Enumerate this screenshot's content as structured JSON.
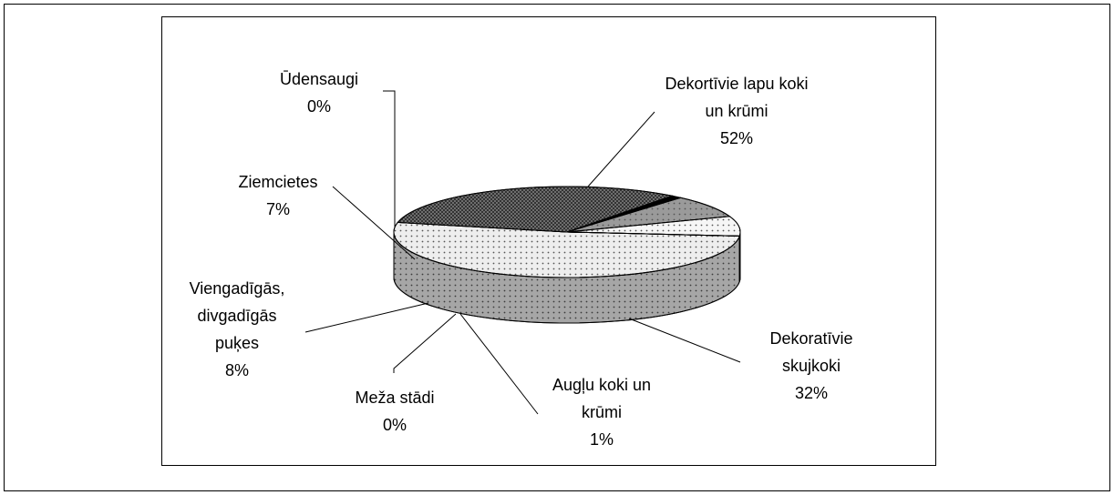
{
  "chart_data": {
    "type": "pie3d",
    "categories": [
      "Dekortīvie lapu koki un krūmi",
      "Dekoratīvie skujkoki",
      "Augļu koki un krūmi",
      "Meža stādi",
      "Viengadīgās, divgadīgās puķes",
      "Ziemcietes",
      "Ūdensaugi"
    ],
    "values": [
      52,
      32,
      1,
      0,
      8,
      7,
      0
    ],
    "value_labels": [
      "52%",
      "32%",
      "1%",
      "0%",
      "8%",
      "7%",
      "0%"
    ],
    "colors": [
      "#eeeeee",
      "#6e6e6e",
      "#000000",
      "#ffffff",
      "#9a9a9a",
      "#f6f6f6",
      "#1a1a1a"
    ]
  }
}
